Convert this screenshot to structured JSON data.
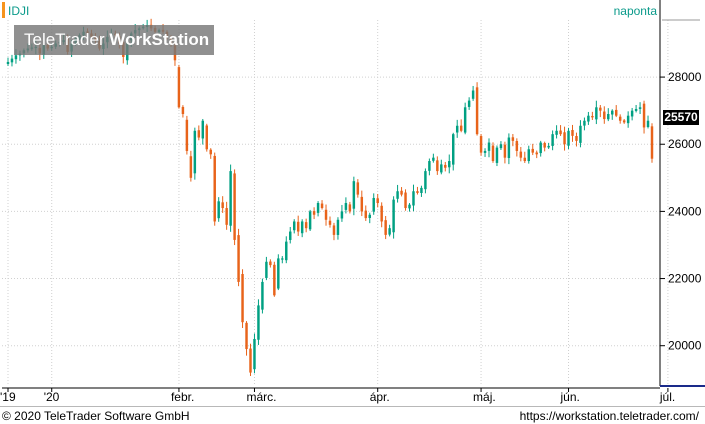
{
  "symbol": "IDJI",
  "period": "naponta",
  "watermark": {
    "part1": "TeleTrader ",
    "part2": "WorkStation"
  },
  "footer": {
    "copyright": "© 2020 TeleTrader Software GmbH",
    "url": "https://workstation.teletrader.com/"
  },
  "last_value": "25570",
  "colors": {
    "up": "#00a082",
    "down": "#e8631a",
    "accent": "#f7941d",
    "text_teal": "#0a9a8a"
  },
  "chart_data": {
    "type": "candlestick",
    "y_axis": {
      "ticks": [
        20000,
        22000,
        24000,
        26000,
        28000
      ],
      "range": [
        18800,
        29700
      ],
      "side": "right"
    },
    "x_axis": {
      "labels": [
        "'19",
        "'20",
        "febr.",
        "márc.",
        "ápr.",
        "máj.",
        "jún.",
        "júl."
      ]
    },
    "grid": true,
    "last_value": 25570,
    "closes": [
      28450,
      28550,
      28650,
      28700,
      28800,
      28850,
      28880,
      28900,
      28700,
      28950,
      28850,
      28900,
      29000,
      29050,
      29100,
      28750,
      29000,
      29150,
      29250,
      29350,
      29300,
      29200,
      29100,
      28850,
      29000,
      29200,
      29300,
      29250,
      29000,
      28600,
      29100,
      29300,
      29400,
      29450,
      29500,
      29550,
      29450,
      29350,
      29400,
      29350,
      29200,
      29000,
      28500,
      27100,
      26900,
      25800,
      25000,
      26400,
      26200,
      26700,
      25850,
      25700,
      23700,
      24300,
      24100,
      23600,
      25200,
      23150,
      21900,
      20700,
      19900,
      19200,
      20200,
      21200,
      21900,
      22500,
      22400,
      21500,
      22600,
      22600,
      23100,
      23400,
      23700,
      23400,
      23700,
      23500,
      24000,
      23900,
      24250,
      24100,
      23750,
      23600,
      23300,
      23750,
      24000,
      24250,
      24000,
      24900,
      24500,
      24000,
      23800,
      23900,
      24400,
      24250,
      23700,
      23300,
      23500,
      24350,
      24600,
      24500,
      24100,
      24200,
      24600,
      24550,
      24700,
      25200,
      25500,
      25600,
      25200,
      25400,
      25300,
      25500,
      26300,
      26550,
      26400,
      27100,
      27300,
      27600,
      26300,
      25750,
      25800,
      26050,
      25500,
      25900,
      26000,
      25600,
      26200,
      26100,
      25800,
      25600,
      25500,
      25850,
      25750,
      25700,
      26050,
      25900,
      25950,
      26300,
      26400,
      26300,
      26000,
      26400,
      26250,
      26100,
      26550,
      26700,
      26850,
      26800,
      27100,
      27000,
      26750,
      26900,
      27000,
      26850,
      26700,
      26650,
      26850,
      27000,
      27050,
      27100,
      26500,
      26700,
      25570
    ],
    "x_index_labels": {
      "'19": 0,
      "'20": 11,
      "febr.": 43,
      "márc.": 62,
      "ápr.": 93,
      "máj.": 119,
      "jún.": 141,
      "júl.": 166
    }
  }
}
